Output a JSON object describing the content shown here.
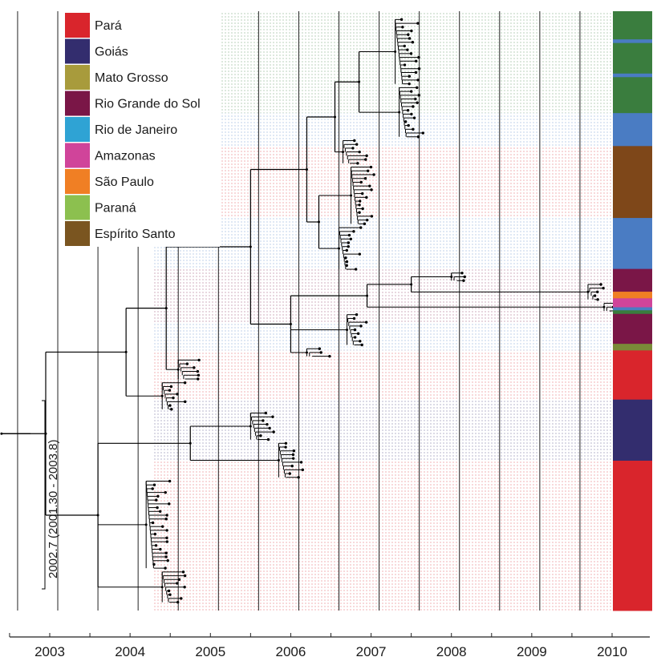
{
  "chart_data": {
    "type": "phylogenetic-tree",
    "title": "",
    "xlabel": "",
    "ylabel": "",
    "xlim": [
      2002.1,
      2010
    ],
    "x_ticks": [
      "2003",
      "2004",
      "2005",
      "2006",
      "2007",
      "2008",
      "2009",
      "2010"
    ],
    "grid": "vertical lines every half year",
    "legend_position": "top-left",
    "legend": [
      {
        "label": "Pará",
        "color": "#d9252c"
      },
      {
        "label": "Goiás",
        "color": "#332d6e"
      },
      {
        "label": "Mato Grosso",
        "color": "#a89b3c"
      },
      {
        "label": "Rio Grande do Sol",
        "color": "#7a1647"
      },
      {
        "label": "Rio de Janeiro",
        "color": "#2fa3d4"
      },
      {
        "label": "Amazonas",
        "color": "#d0449a"
      },
      {
        "label": "São Paulo",
        "color": "#f07f24"
      },
      {
        "label": "Paraná",
        "color": "#8cc04f"
      },
      {
        "label": "Espírito Santo",
        "color": "#7a5520"
      }
    ],
    "root_annotation": "2002.7 (2001.30 - 2003.8)",
    "location_bar": [
      {
        "color": "#3a7d3e",
        "from": 0.0,
        "to": 0.047
      },
      {
        "color": "#4a7cc3",
        "from": 0.047,
        "to": 0.053
      },
      {
        "color": "#3a7d3e",
        "from": 0.053,
        "to": 0.104
      },
      {
        "color": "#4a7cc3",
        "from": 0.104,
        "to": 0.11
      },
      {
        "color": "#3a7d3e",
        "from": 0.11,
        "to": 0.17
      },
      {
        "color": "#4a7cc3",
        "from": 0.17,
        "to": 0.225
      },
      {
        "color": "#7e4719",
        "from": 0.225,
        "to": 0.345
      },
      {
        "color": "#4a7cc3",
        "from": 0.345,
        "to": 0.43
      },
      {
        "color": "#7a1647",
        "from": 0.43,
        "to": 0.468
      },
      {
        "color": "#f07f24",
        "from": 0.468,
        "to": 0.479
      },
      {
        "color": "#d0449a",
        "from": 0.479,
        "to": 0.494
      },
      {
        "color": "#4a7cc3",
        "from": 0.494,
        "to": 0.499
      },
      {
        "color": "#3a7d3e",
        "from": 0.499,
        "to": 0.505
      },
      {
        "color": "#7a1647",
        "from": 0.505,
        "to": 0.555
      },
      {
        "color": "#7a8a38",
        "from": 0.555,
        "to": 0.566
      },
      {
        "color": "#d9252c",
        "from": 0.566,
        "to": 0.648
      },
      {
        "color": "#332d6e",
        "from": 0.648,
        "to": 0.75
      },
      {
        "color": "#d9252c",
        "from": 0.75,
        "to": 1.0
      }
    ],
    "shading_bands": [
      {
        "color": "#3a7d3e",
        "from": 0.0,
        "to": 0.17
      },
      {
        "color": "#4a7cc3",
        "from": 0.17,
        "to": 0.225
      },
      {
        "color": "#d9252c",
        "from": 0.225,
        "to": 0.345
      },
      {
        "color": "#4a7cc3",
        "from": 0.345,
        "to": 0.43
      },
      {
        "color": "#7a1647",
        "from": 0.43,
        "to": 0.52
      },
      {
        "color": "#4a7cc3",
        "from": 0.52,
        "to": 0.566
      },
      {
        "color": "#d9252c",
        "from": 0.566,
        "to": 0.648
      },
      {
        "color": "#332d6e",
        "from": 0.648,
        "to": 0.75
      },
      {
        "color": "#d9252c",
        "from": 0.75,
        "to": 1.0
      }
    ],
    "tree": [
      {
        "x": 2002.4,
        "children": [
          {
            "x": 2002.95,
            "children": [
              {
                "x": 2003.95,
                "children": [
                  {
                    "x": 2004.45,
                    "children": [
                      {
                        "x": 2005.5,
                        "children": [
                          {
                            "x": 2006.2,
                            "children": [
                              {
                                "x": 2006.55,
                                "children": [
                                  {
                                    "x": 2006.85,
                                    "children": [
                                      {
                                        "x": 2007.3,
                                        "leaves": 18
                                      },
                                      {
                                        "x": 2007.35,
                                        "leaves": 14
                                      }
                                    ]
                                  },
                                  {
                                    "x": 2006.65,
                                    "leaves": 7
                                  }
                                ]
                              },
                              {
                                "x": 2006.35,
                                "children": [
                                  {
                                    "x": 2006.75,
                                    "leaves": 16
                                  },
                                  {
                                    "x": 2006.6,
                                    "leaves": 12
                                  }
                                ]
                              }
                            ]
                          },
                          {
                            "x": 2006.0,
                            "children": [
                              {
                                "x": 2006.95,
                                "children": [
                                  {
                                    "x": 2007.5,
                                    "children": [
                                      {
                                        "x": 2008.0,
                                        "leaves": 3
                                      },
                                      {
                                        "x": 2009.7,
                                        "leaves": 5
                                      }
                                    ]
                                  },
                                  {
                                    "x": 2009.9,
                                    "leaves": 3
                                  }
                                ]
                              },
                              {
                                "x": 2006.7,
                                "leaves": 9
                              },
                              {
                                "x": 2006.2,
                                "leaves": 3
                              }
                            ]
                          }
                        ]
                      },
                      {
                        "x": 2004.6,
                        "leaves": 6
                      }
                    ]
                  },
                  {
                    "x": 2004.4,
                    "leaves": 8
                  }
                ]
              },
              {
                "x": 2003.6,
                "children": [
                  {
                    "x": 2004.75,
                    "children": [
                      {
                        "x": 2005.5,
                        "leaves": 8
                      },
                      {
                        "x": 2005.85,
                        "leaves": 10
                      }
                    ]
                  },
                  {
                    "x": 2004.2,
                    "leaves": 24
                  },
                  {
                    "x": 2004.4,
                    "leaves": 9
                  }
                ]
              }
            ]
          }
        ]
      }
    ]
  }
}
